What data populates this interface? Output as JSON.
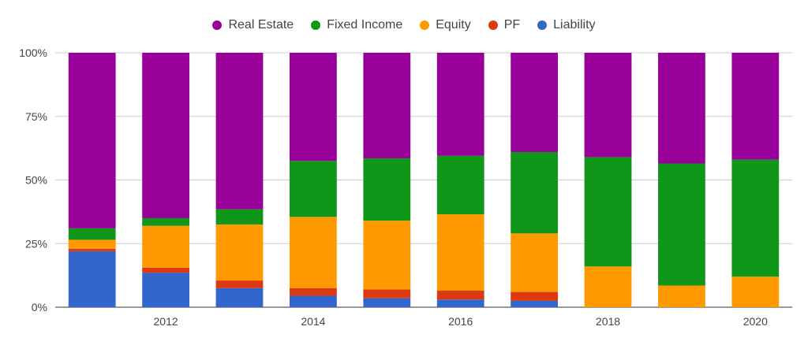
{
  "chart_data": {
    "type": "bar",
    "stacked": true,
    "percent_stacked": true,
    "categories": [
      "2011",
      "2012",
      "2013",
      "2014",
      "2015",
      "2016",
      "2017",
      "2018",
      "2019",
      "2020"
    ],
    "x_tick_labels": [
      "",
      "2012",
      "",
      "2014",
      "",
      "2016",
      "",
      "2018",
      "",
      "2020"
    ],
    "y_ticks": [
      "0%",
      "25%",
      "50%",
      "75%",
      "100%"
    ],
    "ylim": [
      0,
      100
    ],
    "grid": true,
    "legend_position": "top-center",
    "legend_order": [
      "Real Estate",
      "Fixed Income",
      "Equity",
      "PF",
      "Liability"
    ],
    "series": [
      {
        "name": "Liability",
        "color": "#3366cc",
        "values": [
          22,
          13.5,
          7.5,
          4.5,
          3.5,
          3,
          2.5,
          0,
          0,
          0
        ]
      },
      {
        "name": "PF",
        "color": "#dc3912",
        "values": [
          1,
          2,
          3,
          3,
          3.5,
          3.5,
          3.5,
          0,
          0,
          0
        ]
      },
      {
        "name": "Equity",
        "color": "#ff9900",
        "values": [
          3.5,
          16.5,
          22,
          28,
          27,
          30,
          23,
          16,
          8.5,
          12
        ]
      },
      {
        "name": "Fixed Income",
        "color": "#109618",
        "values": [
          4.5,
          3,
          6,
          22,
          24.5,
          23,
          32,
          43,
          48,
          46
        ]
      },
      {
        "name": "Real Estate",
        "color": "#990099",
        "values": [
          69,
          65,
          61.5,
          42.5,
          41.5,
          40.5,
          39,
          41,
          43.5,
          42
        ]
      }
    ]
  }
}
